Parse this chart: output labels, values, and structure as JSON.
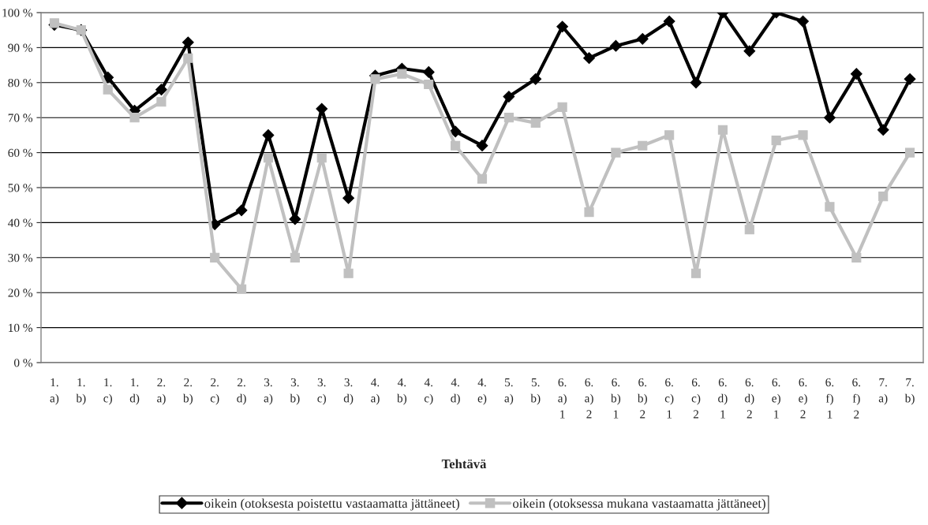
{
  "chart_data": {
    "type": "line",
    "xlabel": "Tehtävä",
    "categories": [
      "1.\na)",
      "1.\nb)",
      "1.\nc)",
      "1.\nd)",
      "2.\na)",
      "2.\nb)",
      "2.\nc)",
      "2.\nd)",
      "3.\na)",
      "3.\nb)",
      "3.\nc)",
      "3.\nd)",
      "4.\na)",
      "4.\nb)",
      "4.\nc)",
      "4.\nd)",
      "4.\ne)",
      "5.\na)",
      "5.\nb)",
      "6.\na)\n1",
      "6.\na)\n2",
      "6.\nb)\n1",
      "6.\nb)\n2",
      "6.\nc)\n1",
      "6.\nc)\n2",
      "6.\nd)\n1",
      "6.\nd)\n2",
      "6.\ne)\n1",
      "6.\ne)\n2",
      "6.\nf)\n1",
      "6.\nf)\n2",
      "7.\na)",
      "7.\nb)"
    ],
    "series": [
      {
        "name": "oikein (otoksesta poistettu vastaamatta jättäneet)",
        "color": "#000000",
        "marker": "diamond",
        "values": [
          96.5,
          95,
          81.5,
          72,
          78,
          91.5,
          39.5,
          43.5,
          65,
          41,
          72.5,
          47,
          82,
          84,
          83,
          66,
          62,
          76,
          81,
          96,
          87,
          90.5,
          92.5,
          97.5,
          80,
          100,
          89,
          100,
          97.5,
          70,
          82.5,
          66.5,
          81
        ]
      },
      {
        "name": "oikein (otoksessa mukana vastaamatta jättäneet)",
        "color": "#c0c0c0",
        "marker": "square",
        "values": [
          97,
          95,
          78,
          70,
          74.5,
          87,
          30,
          21,
          58.5,
          30,
          58.5,
          25.5,
          81,
          82.5,
          79.5,
          62,
          52.5,
          70,
          68.5,
          73,
          43,
          60,
          62,
          65,
          25.5,
          66.5,
          38,
          63.5,
          65,
          44.5,
          30,
          47.5,
          60
        ]
      }
    ],
    "ylim": [
      0,
      100
    ],
    "yticks": [
      {
        "value": 0,
        "label": "0 %"
      },
      {
        "value": 10,
        "label": "10 %"
      },
      {
        "value": 20,
        "label": "20 %"
      },
      {
        "value": 30,
        "label": "30 %"
      },
      {
        "value": 40,
        "label": "40 %"
      },
      {
        "value": 50,
        "label": "50 %"
      },
      {
        "value": 60,
        "label": "60 %"
      },
      {
        "value": 70,
        "label": "70 %"
      },
      {
        "value": 80,
        "label": "80 %"
      },
      {
        "value": 90,
        "label": "90 %"
      },
      {
        "value": 100,
        "label": "100 %"
      }
    ],
    "grid": "y",
    "legend": "bottom",
    "line_style": "solid"
  }
}
